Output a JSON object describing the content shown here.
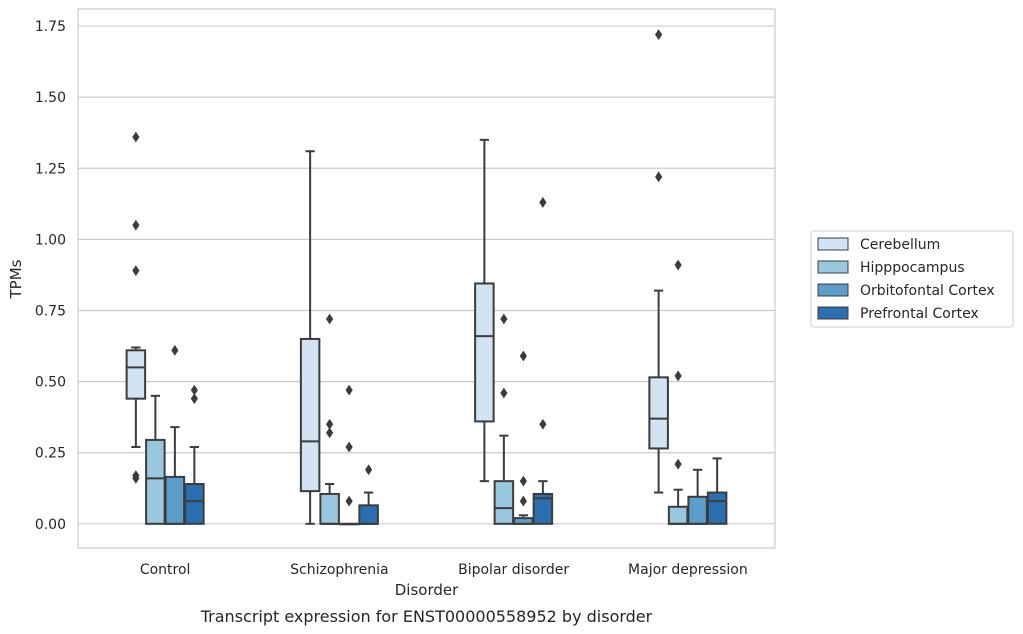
{
  "chart_data": {
    "type": "box",
    "caption": "Transcript expression for ENST00000558952 by disorder",
    "xlabel": "Disorder",
    "ylabel": "TPMs",
    "ylim": [
      -0.085,
      1.81
    ],
    "yticks": [
      0,
      0.25,
      0.5,
      0.75,
      1.0,
      1.25,
      1.5,
      1.75
    ],
    "ytick_labels": [
      "0.00",
      "0.25",
      "0.50",
      "0.75",
      "1.00",
      "1.25",
      "1.50",
      "1.75"
    ],
    "grid": "horizontal",
    "legend_position": "right",
    "categories": [
      "Control",
      "Schizophrenia",
      "Bipolar disorder",
      "Major depression"
    ],
    "series": [
      {
        "name": "Cerebellum",
        "color": "#d2e3f3",
        "boxes": [
          {
            "whislo": 0.27,
            "q1": 0.44,
            "med": 0.55,
            "q3": 0.61,
            "whishi": 0.62,
            "fliers": [
              1.36,
              1.05,
              0.89,
              0.17,
              0.16
            ]
          },
          {
            "whislo": 0.0,
            "q1": 0.115,
            "med": 0.29,
            "q3": 0.65,
            "whishi": 1.31,
            "fliers": []
          },
          {
            "whislo": 0.15,
            "q1": 0.36,
            "med": 0.66,
            "q3": 0.845,
            "whishi": 1.35,
            "fliers": []
          },
          {
            "whislo": 0.11,
            "q1": 0.265,
            "med": 0.37,
            "q3": 0.515,
            "whishi": 0.82,
            "fliers": [
              1.72,
              1.22
            ]
          }
        ]
      },
      {
        "name": "Hipppocampus",
        "color": "#9ac7e0",
        "boxes": [
          {
            "whislo": 0.0,
            "q1": 0.0,
            "med": 0.16,
            "q3": 0.295,
            "whishi": 0.45,
            "fliers": []
          },
          {
            "whislo": 0.0,
            "q1": 0.0,
            "med": 0.0,
            "q3": 0.105,
            "whishi": 0.14,
            "fliers": [
              0.72,
              0.35,
              0.32
            ]
          },
          {
            "whislo": 0.0,
            "q1": 0.0,
            "med": 0.055,
            "q3": 0.15,
            "whishi": 0.31,
            "fliers": [
              0.72,
              0.46
            ]
          },
          {
            "whislo": 0.0,
            "q1": 0.0,
            "med": 0.0,
            "q3": 0.06,
            "whishi": 0.12,
            "fliers": [
              0.91,
              0.52,
              0.21
            ]
          }
        ]
      },
      {
        "name": "Orbitofontal Cortex",
        "color": "#5a9ec9",
        "boxes": [
          {
            "whislo": 0.0,
            "q1": 0.0,
            "med": 0.0,
            "q3": 0.165,
            "whishi": 0.34,
            "fliers": [
              0.61
            ]
          },
          {
            "whislo": 0.0,
            "q1": 0.0,
            "med": 0.0,
            "q3": 0.0,
            "whishi": 0.0,
            "fliers": [
              0.47,
              0.27,
              0.08
            ]
          },
          {
            "whislo": 0.0,
            "q1": 0.0,
            "med": 0.0,
            "q3": 0.02,
            "whishi": 0.03,
            "fliers": [
              0.59,
              0.15,
              0.08
            ]
          },
          {
            "whislo": 0.0,
            "q1": 0.0,
            "med": 0.0,
            "q3": 0.095,
            "whishi": 0.19,
            "fliers": []
          }
        ]
      },
      {
        "name": "Prefrontal Cortex",
        "color": "#2b6fb0",
        "boxes": [
          {
            "whislo": 0.0,
            "q1": 0.0,
            "med": 0.08,
            "q3": 0.14,
            "whishi": 0.27,
            "fliers": [
              0.47,
              0.44
            ]
          },
          {
            "whislo": 0.0,
            "q1": 0.0,
            "med": 0.0,
            "q3": 0.065,
            "whishi": 0.11,
            "fliers": [
              0.19
            ]
          },
          {
            "whislo": 0.0,
            "q1": 0.0,
            "med": 0.09,
            "q3": 0.105,
            "whishi": 0.15,
            "fliers": [
              1.13,
              0.35
            ]
          },
          {
            "whislo": 0.0,
            "q1": 0.0,
            "med": 0.08,
            "q3": 0.11,
            "whishi": 0.23,
            "fliers": []
          }
        ]
      }
    ]
  }
}
